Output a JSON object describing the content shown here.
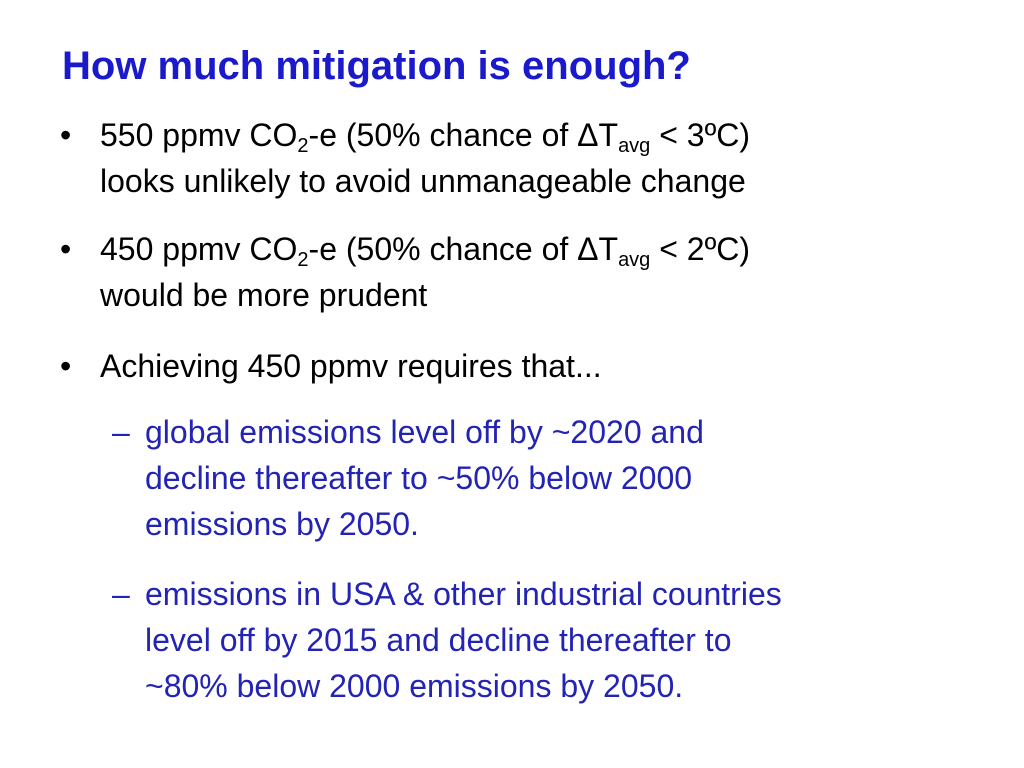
{
  "slide": {
    "title": "How much mitigation is enough?",
    "bullet_char": "•",
    "dash_char": "–",
    "bullets": [
      {
        "line1": {
          "pre": "550 ppmv CO",
          "sub1": "2",
          "mid": "-e (50% chance of ΔT",
          "sub2": "avg",
          "post": " < 3ºC)"
        },
        "line2": "looks unlikely to avoid unmanageable change"
      },
      {
        "line1": {
          "pre": "450 ppmv CO",
          "sub1": "2",
          "mid": "-e (50% chance of ΔT",
          "sub2": "avg",
          "post": " < 2ºC)"
        },
        "line2": "would be more prudent"
      },
      {
        "line1": "Achieving 450 ppmv requires that..."
      }
    ],
    "subbullets": [
      {
        "lines": [
          "global emissions level off by ~2020 and",
          "decline thereafter to ~50% below 2000",
          "emissions by 2050."
        ]
      },
      {
        "lines": [
          "emissions in USA & other industrial countries",
          "level off by 2015 and decline thereafter to",
          "~80% below 2000 emissions by 2050."
        ]
      }
    ]
  }
}
